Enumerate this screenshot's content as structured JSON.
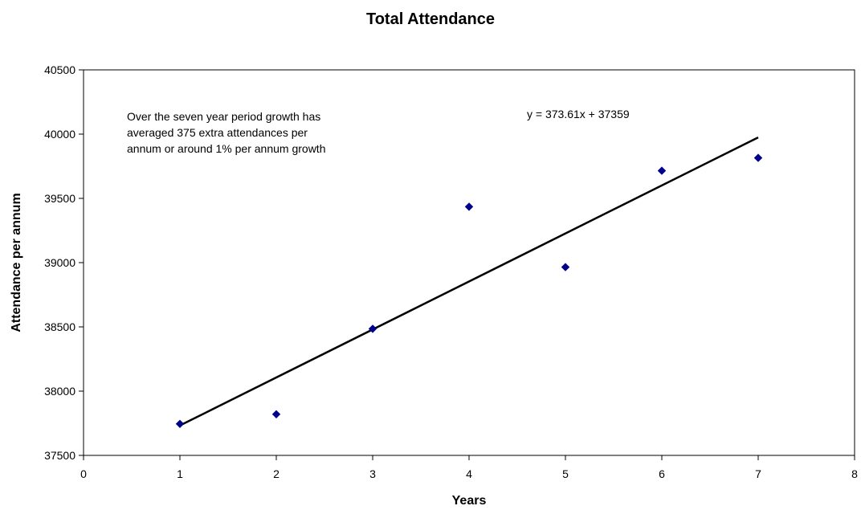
{
  "chart_data": {
    "type": "scatter",
    "title": "Total Attendance",
    "xlabel": "Years",
    "ylabel": "Attendance per annum",
    "xlim": [
      0,
      8
    ],
    "ylim": [
      37500,
      40500
    ],
    "x_ticks": [
      "0",
      "1",
      "2",
      "3",
      "4",
      "5",
      "6",
      "7",
      "8"
    ],
    "y_ticks": [
      "37500",
      "38000",
      "38500",
      "39000",
      "39500",
      "40000",
      "40500"
    ],
    "grid": false,
    "legend": "none",
    "series": [
      {
        "x": [
          1,
          2,
          3,
          4,
          5,
          6,
          7
        ],
        "y": [
          37745,
          37820,
          38485,
          39435,
          38965,
          39715,
          39815
        ],
        "color": "#00008B",
        "marker": "diamond"
      }
    ],
    "trendline": {
      "slope": 373.61,
      "intercept": 37359,
      "x_range": [
        1,
        7
      ],
      "color": "#000000",
      "equation_label": "y = 373.61x + 37359"
    },
    "annotation": {
      "lines": [
        "Over the seven year period growth has",
        "averaged 375 extra attendances per",
        "annum or around 1% per annum growth"
      ]
    }
  }
}
